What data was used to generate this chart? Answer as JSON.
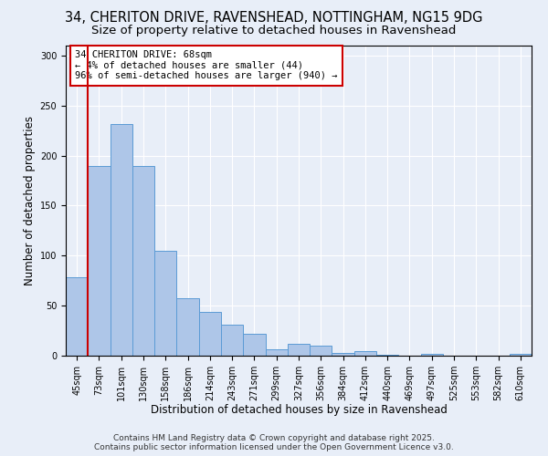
{
  "title_line1": "34, CHERITON DRIVE, RAVENSHEAD, NOTTINGHAM, NG15 9DG",
  "title_line2": "Size of property relative to detached houses in Ravenshead",
  "xlabel": "Distribution of detached houses by size in Ravenshead",
  "ylabel": "Number of detached properties",
  "categories": [
    "45sqm",
    "73sqm",
    "101sqm",
    "130sqm",
    "158sqm",
    "186sqm",
    "214sqm",
    "243sqm",
    "271sqm",
    "299sqm",
    "327sqm",
    "356sqm",
    "384sqm",
    "412sqm",
    "440sqm",
    "469sqm",
    "497sqm",
    "525sqm",
    "553sqm",
    "582sqm",
    "610sqm"
  ],
  "values": [
    78,
    190,
    232,
    190,
    105,
    57,
    44,
    31,
    22,
    6,
    12,
    10,
    3,
    5,
    1,
    0,
    2,
    0,
    0,
    0,
    2
  ],
  "bar_color": "#aec6e8",
  "bar_edge_color": "#5b9bd5",
  "background_color": "#e8eef8",
  "grid_color": "#ffffff",
  "vline_x": 0.5,
  "vline_color": "#cc0000",
  "annotation_text": "34 CHERITON DRIVE: 68sqm\n← 4% of detached houses are smaller (44)\n96% of semi-detached houses are larger (940) →",
  "annotation_box_color": "#ffffff",
  "annotation_box_edge_color": "#cc0000",
  "ylim": [
    0,
    310
  ],
  "yticks": [
    0,
    50,
    100,
    150,
    200,
    250,
    300
  ],
  "footer_line1": "Contains HM Land Registry data © Crown copyright and database right 2025.",
  "footer_line2": "Contains public sector information licensed under the Open Government Licence v3.0.",
  "title_fontsize": 10.5,
  "subtitle_fontsize": 9.5,
  "xlabel_fontsize": 8.5,
  "ylabel_fontsize": 8.5,
  "tick_fontsize": 7,
  "annotation_fontsize": 7.5,
  "footer_fontsize": 6.5
}
